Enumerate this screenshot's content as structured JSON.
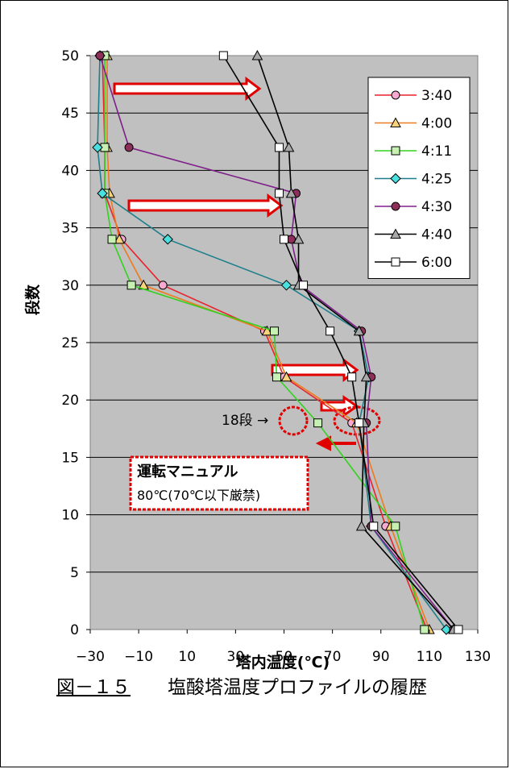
{
  "chart_data": {
    "type": "line",
    "xlabel": "塔内温度(℃)",
    "ylabel": "段数",
    "xlim": [
      -30,
      130
    ],
    "ylim": [
      0,
      50
    ],
    "xticks": [
      "-30",
      "-10",
      "10",
      "30",
      "50",
      "70",
      "90",
      "110",
      "130"
    ],
    "yticks": [
      "0",
      "5",
      "10",
      "15",
      "20",
      "25",
      "30",
      "35",
      "40",
      "45",
      "50"
    ],
    "grid": "horizontal",
    "legend_position": "top-right",
    "series": [
      {
        "name": "3:40",
        "color": "#e8242c",
        "marker": "circle",
        "fill": "#f7aad0",
        "points": [
          [
            -25,
            50
          ],
          [
            -24,
            42
          ],
          [
            -24,
            38
          ],
          [
            -17,
            34
          ],
          [
            0,
            30
          ],
          [
            42,
            26
          ],
          [
            50,
            22
          ],
          [
            78,
            18
          ],
          [
            92,
            9
          ],
          [
            109,
            0
          ]
        ]
      },
      {
        "name": "4:00",
        "color": "#ee7a1d",
        "marker": "triangle",
        "fill": "#f8d37a",
        "points": [
          [
            -23,
            50
          ],
          [
            -23,
            42
          ],
          [
            -22,
            38
          ],
          [
            -18,
            34
          ],
          [
            -8,
            30
          ],
          [
            43,
            26
          ],
          [
            51,
            22
          ],
          [
            80,
            18
          ],
          [
            94,
            9
          ],
          [
            110,
            0
          ]
        ]
      },
      {
        "name": "4:11",
        "color": "#33d21e",
        "marker": "square",
        "fill": "#c6f1b2",
        "points": [
          [
            -24,
            50
          ],
          [
            -24,
            42
          ],
          [
            -24,
            38
          ],
          [
            -21,
            34
          ],
          [
            -13,
            30
          ],
          [
            46,
            26
          ],
          [
            47,
            22
          ],
          [
            64,
            18
          ],
          [
            96,
            9
          ],
          [
            108,
            0
          ]
        ]
      },
      {
        "name": "4:25",
        "color": "#1d7f8a",
        "marker": "diamond",
        "fill": "#49e1e0",
        "points": [
          [
            -26,
            50
          ],
          [
            -27,
            42
          ],
          [
            -25,
            38
          ],
          [
            2,
            34
          ],
          [
            51,
            30
          ],
          [
            81,
            26
          ],
          [
            85,
            22
          ],
          [
            81,
            18
          ],
          [
            86,
            9
          ],
          [
            117,
            0
          ]
        ]
      },
      {
        "name": "4:30",
        "color": "#7f1f8a",
        "marker": "circle",
        "fill": "#8e2f5a",
        "points": [
          [
            -26,
            50
          ],
          [
            -14,
            42
          ],
          [
            55,
            38
          ],
          [
            53,
            34
          ],
          [
            57,
            30
          ],
          [
            82,
            26
          ],
          [
            86,
            22
          ],
          [
            84,
            18
          ],
          [
            86,
            9
          ],
          [
            120,
            0
          ]
        ]
      },
      {
        "name": "4:40",
        "color": "#000000",
        "marker": "triangle",
        "fill": "#a8a8a8",
        "points": [
          [
            39,
            50
          ],
          [
            52,
            42
          ],
          [
            53,
            38
          ],
          [
            56,
            34
          ],
          [
            56,
            30
          ],
          [
            81,
            26
          ],
          [
            84,
            22
          ],
          [
            83,
            18
          ],
          [
            82,
            9
          ],
          [
            120,
            0
          ]
        ]
      },
      {
        "name": "6:00",
        "color": "#000000",
        "marker": "square",
        "fill": "#ffffff",
        "points": [
          [
            25,
            50
          ],
          [
            48,
            42
          ],
          [
            48,
            38
          ],
          [
            50,
            34
          ],
          [
            58,
            30
          ],
          [
            69,
            26
          ],
          [
            78,
            22
          ],
          [
            81,
            18
          ],
          [
            87,
            9
          ],
          [
            122,
            0
          ]
        ]
      }
    ],
    "annotations": {
      "stage_label": "18段 →",
      "manual_title": "運転マニュアル",
      "manual_text": "80℃(70℃以下厳禁)"
    }
  },
  "caption": {
    "figure": "図－１５",
    "title": "塩酸塔温度プロファイルの履歴"
  }
}
